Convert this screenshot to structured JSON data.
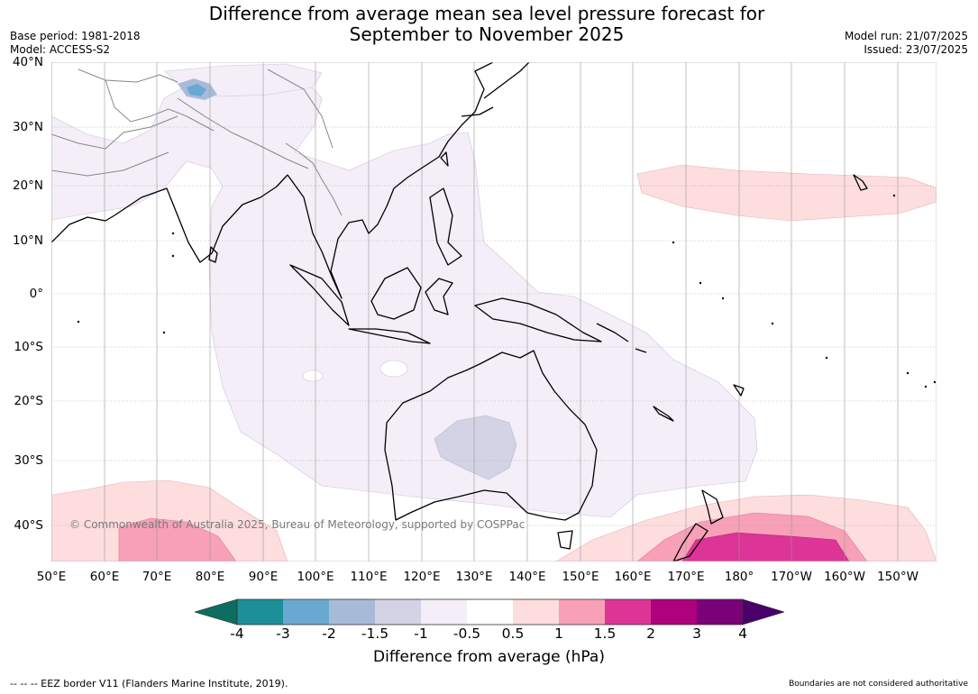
{
  "header": {
    "title_line1": "Difference from average mean sea level pressure forecast for",
    "title_line2": "September to November 2025",
    "base_period": "Base period: 1981-2018",
    "model": "Model: ACCESS-S2",
    "model_run": "Model run: 21/07/2025",
    "issued": "Issued: 23/07/2025"
  },
  "map": {
    "lat_labels": [
      "40°N",
      "30°N",
      "20°N",
      "10°N",
      "0°",
      "10°S",
      "20°S",
      "30°S",
      "40°S"
    ],
    "lon_labels": [
      "50°E",
      "60°E",
      "70°E",
      "80°E",
      "90°E",
      "100°E",
      "110°E",
      "120°E",
      "130°E",
      "140°E",
      "150°E",
      "160°E",
      "170°E",
      "180°",
      "170°W",
      "160°W",
      "150°W"
    ],
    "copyright": "© Commonwealth of Australia 2025, Bureau of Meteorology, supported by COSPPac",
    "colors": {
      "land_outline": "#000000",
      "border": "#888888",
      "grid": "#999999",
      "neg_light": "#f3eef7",
      "neg_mid": "#d3d3e5",
      "pos_light": "#fdddde",
      "pos_mid": "#f7a0b8",
      "pos_strong": "#dd3497",
      "neg_strong": "#6aa8d0"
    }
  },
  "colorbar": {
    "ticks": [
      "-4",
      "-3",
      "-2",
      "-1.5",
      "-1",
      "-0.5",
      "0.5",
      "1",
      "1.5",
      "2",
      "3",
      "4"
    ],
    "colors": [
      "#0d6d60",
      "#1c8f99",
      "#69a9d1",
      "#a7bbd9",
      "#d3d3e5",
      "#f3eef7",
      "#ffffff",
      "#fdddde",
      "#f7a0b8",
      "#dd3497",
      "#ae017e",
      "#7a0177",
      "#49006a"
    ],
    "label": "Difference from average (hPa)"
  },
  "footer": {
    "left": "--  --  -- EEZ border V11 (Flanders Marine Institute, 2019).",
    "right": "Boundaries are not considered authoritative"
  }
}
